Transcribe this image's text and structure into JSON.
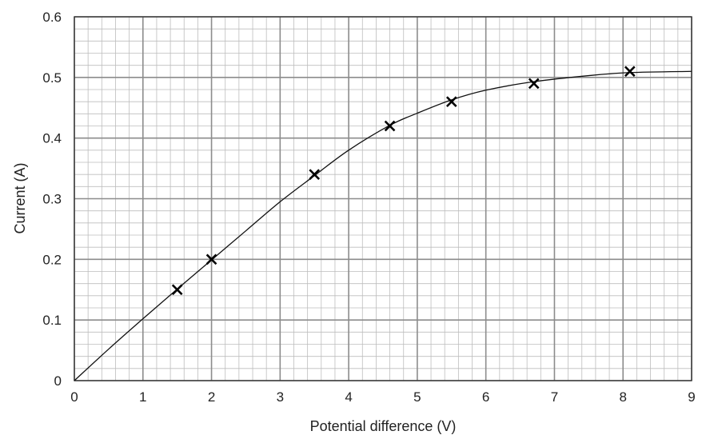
{
  "chart_data": {
    "type": "scatter",
    "title": "",
    "xlabel": "Potential difference (V)",
    "ylabel": "Current (A)",
    "xlim": [
      0,
      9
    ],
    "ylim": [
      0,
      0.6
    ],
    "x_ticks": [
      "0",
      "1",
      "2",
      "3",
      "4",
      "5",
      "6",
      "7",
      "8",
      "9"
    ],
    "y_ticks": [
      "0",
      "0.1",
      "0.2",
      "0.3",
      "0.4",
      "0.5",
      "0.6"
    ],
    "grid": "graph paper (minor every 0.2 V and 0.02 A, major every 1 V and 0.1 A)",
    "marker": "cross",
    "points": [
      {
        "x": 1.5,
        "y": 0.15
      },
      {
        "x": 2.0,
        "y": 0.2
      },
      {
        "x": 3.5,
        "y": 0.34
      },
      {
        "x": 4.6,
        "y": 0.42
      },
      {
        "x": 5.5,
        "y": 0.46
      },
      {
        "x": 6.7,
        "y": 0.49
      },
      {
        "x": 8.1,
        "y": 0.51
      }
    ],
    "curve_of_best_fit": {
      "x": [
        0,
        0.5,
        1.0,
        1.5,
        2.0,
        2.5,
        3.0,
        3.5,
        4.0,
        4.6,
        5.0,
        5.5,
        6.0,
        6.7,
        7.5,
        8.1,
        9.0
      ],
      "y": [
        0,
        0.052,
        0.102,
        0.151,
        0.199,
        0.247,
        0.295,
        0.338,
        0.38,
        0.421,
        0.441,
        0.463,
        0.479,
        0.493,
        0.503,
        0.508,
        0.51
      ]
    },
    "colors": {
      "minor_grid": "#bdbdbd",
      "major_grid": "#8c8c8c",
      "axes": "#333333",
      "curve": "#111111",
      "marker": "#000000"
    }
  }
}
